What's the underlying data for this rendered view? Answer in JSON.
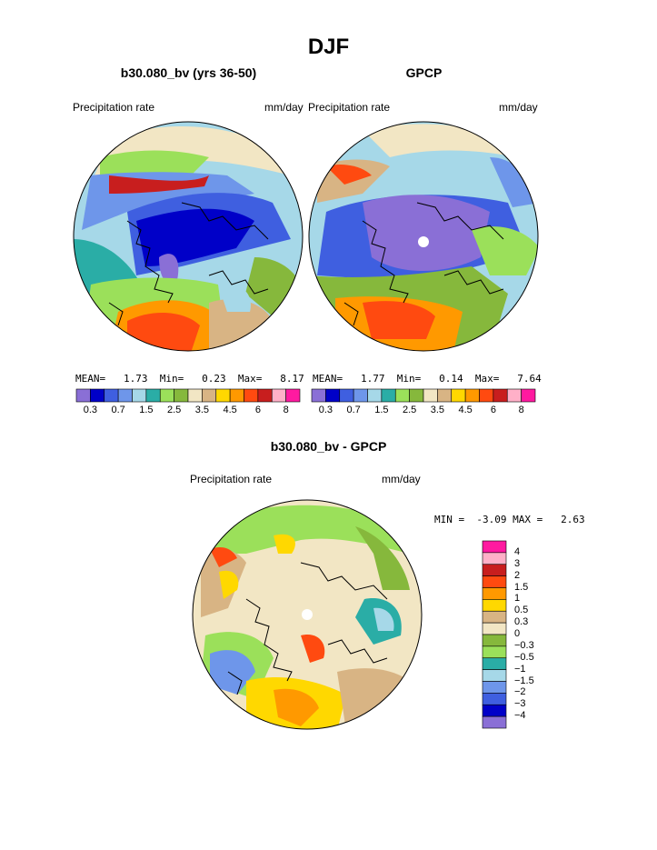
{
  "title": "DJF",
  "panels": [
    {
      "id": "model",
      "title": "b30.080_bv (yrs 36-50)",
      "left_label": "Precipitation rate",
      "right_label": "mm/day",
      "stats": {
        "mean_label": "MEAN=",
        "mean": "1.73",
        "min_label": "Min=",
        "min": "0.23",
        "max_label": "Max=",
        "max": "8.17"
      }
    },
    {
      "id": "obs",
      "title": "GPCP",
      "left_label": "Precipitation rate",
      "right_label": "mm/day",
      "stats": {
        "mean_label": "MEAN=",
        "mean": "1.77",
        "min_label": "Min=",
        "min": "0.14",
        "max_label": "Max=",
        "max": "7.64"
      }
    },
    {
      "id": "diff",
      "title": "b30.080_bv - GPCP",
      "left_label": "Precipitation rate",
      "right_label": "mm/day",
      "stats": {
        "min_label": "MIN =",
        "min": "-3.09",
        "max_label": "MAX =",
        "max": "2.63"
      }
    }
  ],
  "colorbar_abs": {
    "colors": [
      "#8a6fd6",
      "#0000c8",
      "#3f5fe0",
      "#6e96ea",
      "#a6d8e8",
      "#2aada6",
      "#9be05a",
      "#86b83c",
      "#f2e6c4",
      "#d8b484",
      "#ffd800",
      "#ff9900",
      "#ff4a10",
      "#c81e1e",
      "#ffb0c8",
      "#ff1aa0"
    ],
    "tick_labels": [
      "0.3",
      "0.7",
      "1.5",
      "2.5",
      "3.5",
      "4.5",
      "6",
      "8"
    ]
  },
  "colorbar_diff": {
    "colors": [
      "#ff1aa0",
      "#ffb0c8",
      "#c81e1e",
      "#ff4a10",
      "#ff9900",
      "#ffd800",
      "#d8b484",
      "#f2e6c4",
      "#86b83c",
      "#9be05a",
      "#2aada6",
      "#a6d8e8",
      "#6e96ea",
      "#3f5fe0",
      "#0000c8",
      "#8a6fd6"
    ],
    "tick_labels": [
      "4",
      "3",
      "2",
      "1.5",
      "1",
      "0.5",
      "0.3",
      "0",
      "−0.3",
      "−0.5",
      "−1",
      "−1.5",
      "−2",
      "−3",
      "−4"
    ]
  },
  "chart_data": [
    {
      "type": "heatmap",
      "title": "b30.080_bv (yrs 36-50)",
      "projection": "north polar stereographic",
      "variable": "Precipitation rate",
      "units": "mm/day",
      "contour_levels": [
        0.2,
        0.3,
        0.5,
        0.7,
        1,
        1.5,
        2,
        2.5,
        3,
        3.5,
        4,
        4.5,
        5,
        6,
        7,
        8
      ],
      "mean": 1.73,
      "min": 0.23,
      "max": 8.17
    },
    {
      "type": "heatmap",
      "title": "GPCP",
      "projection": "north polar stereographic",
      "variable": "Precipitation rate",
      "units": "mm/day",
      "contour_levels": [
        0.2,
        0.3,
        0.5,
        0.7,
        1,
        1.5,
        2,
        2.5,
        3,
        3.5,
        4,
        4.5,
        5,
        6,
        7,
        8
      ],
      "mean": 1.77,
      "min": 0.14,
      "max": 7.64
    },
    {
      "type": "heatmap",
      "title": "b30.080_bv - GPCP",
      "projection": "north polar stereographic",
      "variable": "Precipitation rate",
      "units": "mm/day",
      "contour_levels": [
        -4,
        -3,
        -2,
        -1.5,
        -1,
        -0.5,
        -0.3,
        0,
        0.3,
        0.5,
        1,
        1.5,
        2,
        3,
        4
      ],
      "min": -3.09,
      "max": 2.63
    }
  ]
}
